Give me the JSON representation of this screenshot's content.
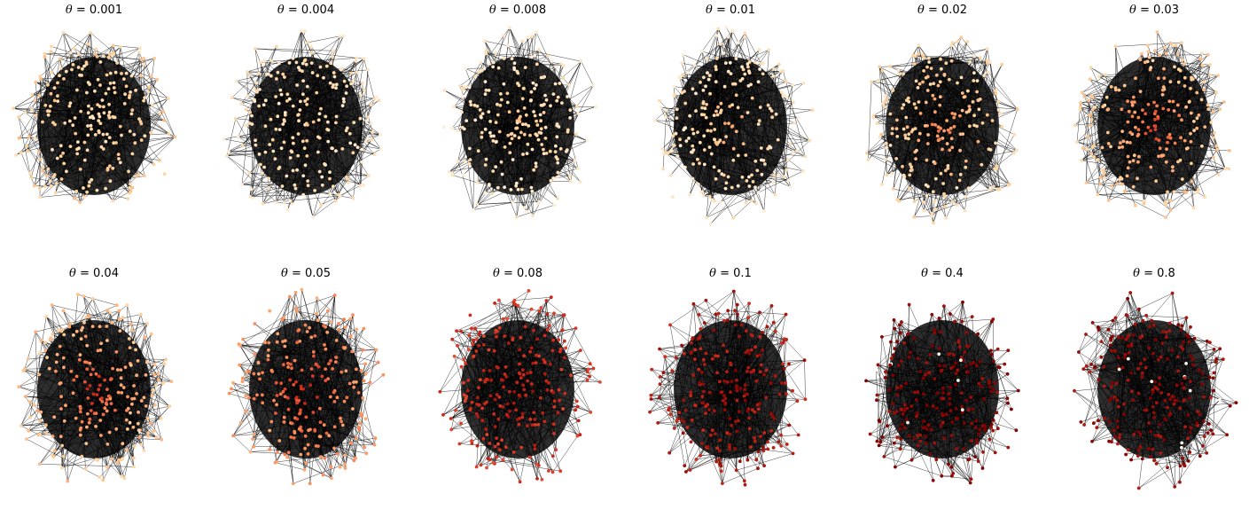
{
  "figure": {
    "panels": [
      {
        "symbol": "θ",
        "value": "= 0.001",
        "level": 0.25,
        "hot_center": 0.2
      },
      {
        "symbol": "θ",
        "value": "= 0.004",
        "level": 0.15,
        "hot_center": 0.25
      },
      {
        "symbol": "θ",
        "value": "= 0.008",
        "level": 0.12,
        "hot_center": 0.3
      },
      {
        "symbol": "θ",
        "value": "= 0.01",
        "level": 0.14,
        "hot_center": 0.4
      },
      {
        "symbol": "θ",
        "value": "= 0.02",
        "level": 0.2,
        "hot_center": 0.55
      },
      {
        "symbol": "θ",
        "value": "= 0.03",
        "level": 0.25,
        "hot_center": 0.75
      },
      {
        "symbol": "θ",
        "value": "= 0.04",
        "level": 0.3,
        "hot_center": 0.8
      },
      {
        "symbol": "θ",
        "value": "= 0.05",
        "level": 0.45,
        "hot_center": 0.85
      },
      {
        "symbol": "θ",
        "value": "= 0.08",
        "level": 0.75,
        "hot_center": 0.9
      },
      {
        "symbol": "θ",
        "value": "= 0.1",
        "level": 0.85,
        "hot_center": 0.95
      },
      {
        "symbol": "θ",
        "value": "= 0.4",
        "level": 0.97,
        "hot_center": 1.0
      },
      {
        "symbol": "θ",
        "value": "= 0.8",
        "level": 0.93,
        "hot_center": 0.98
      }
    ],
    "colors": {
      "edge": "#000000",
      "colormap": [
        "#fff7ec",
        "#fdd49e",
        "#fc8d59",
        "#d7301f",
        "#7f0000"
      ],
      "background": "#ffffff"
    }
  }
}
